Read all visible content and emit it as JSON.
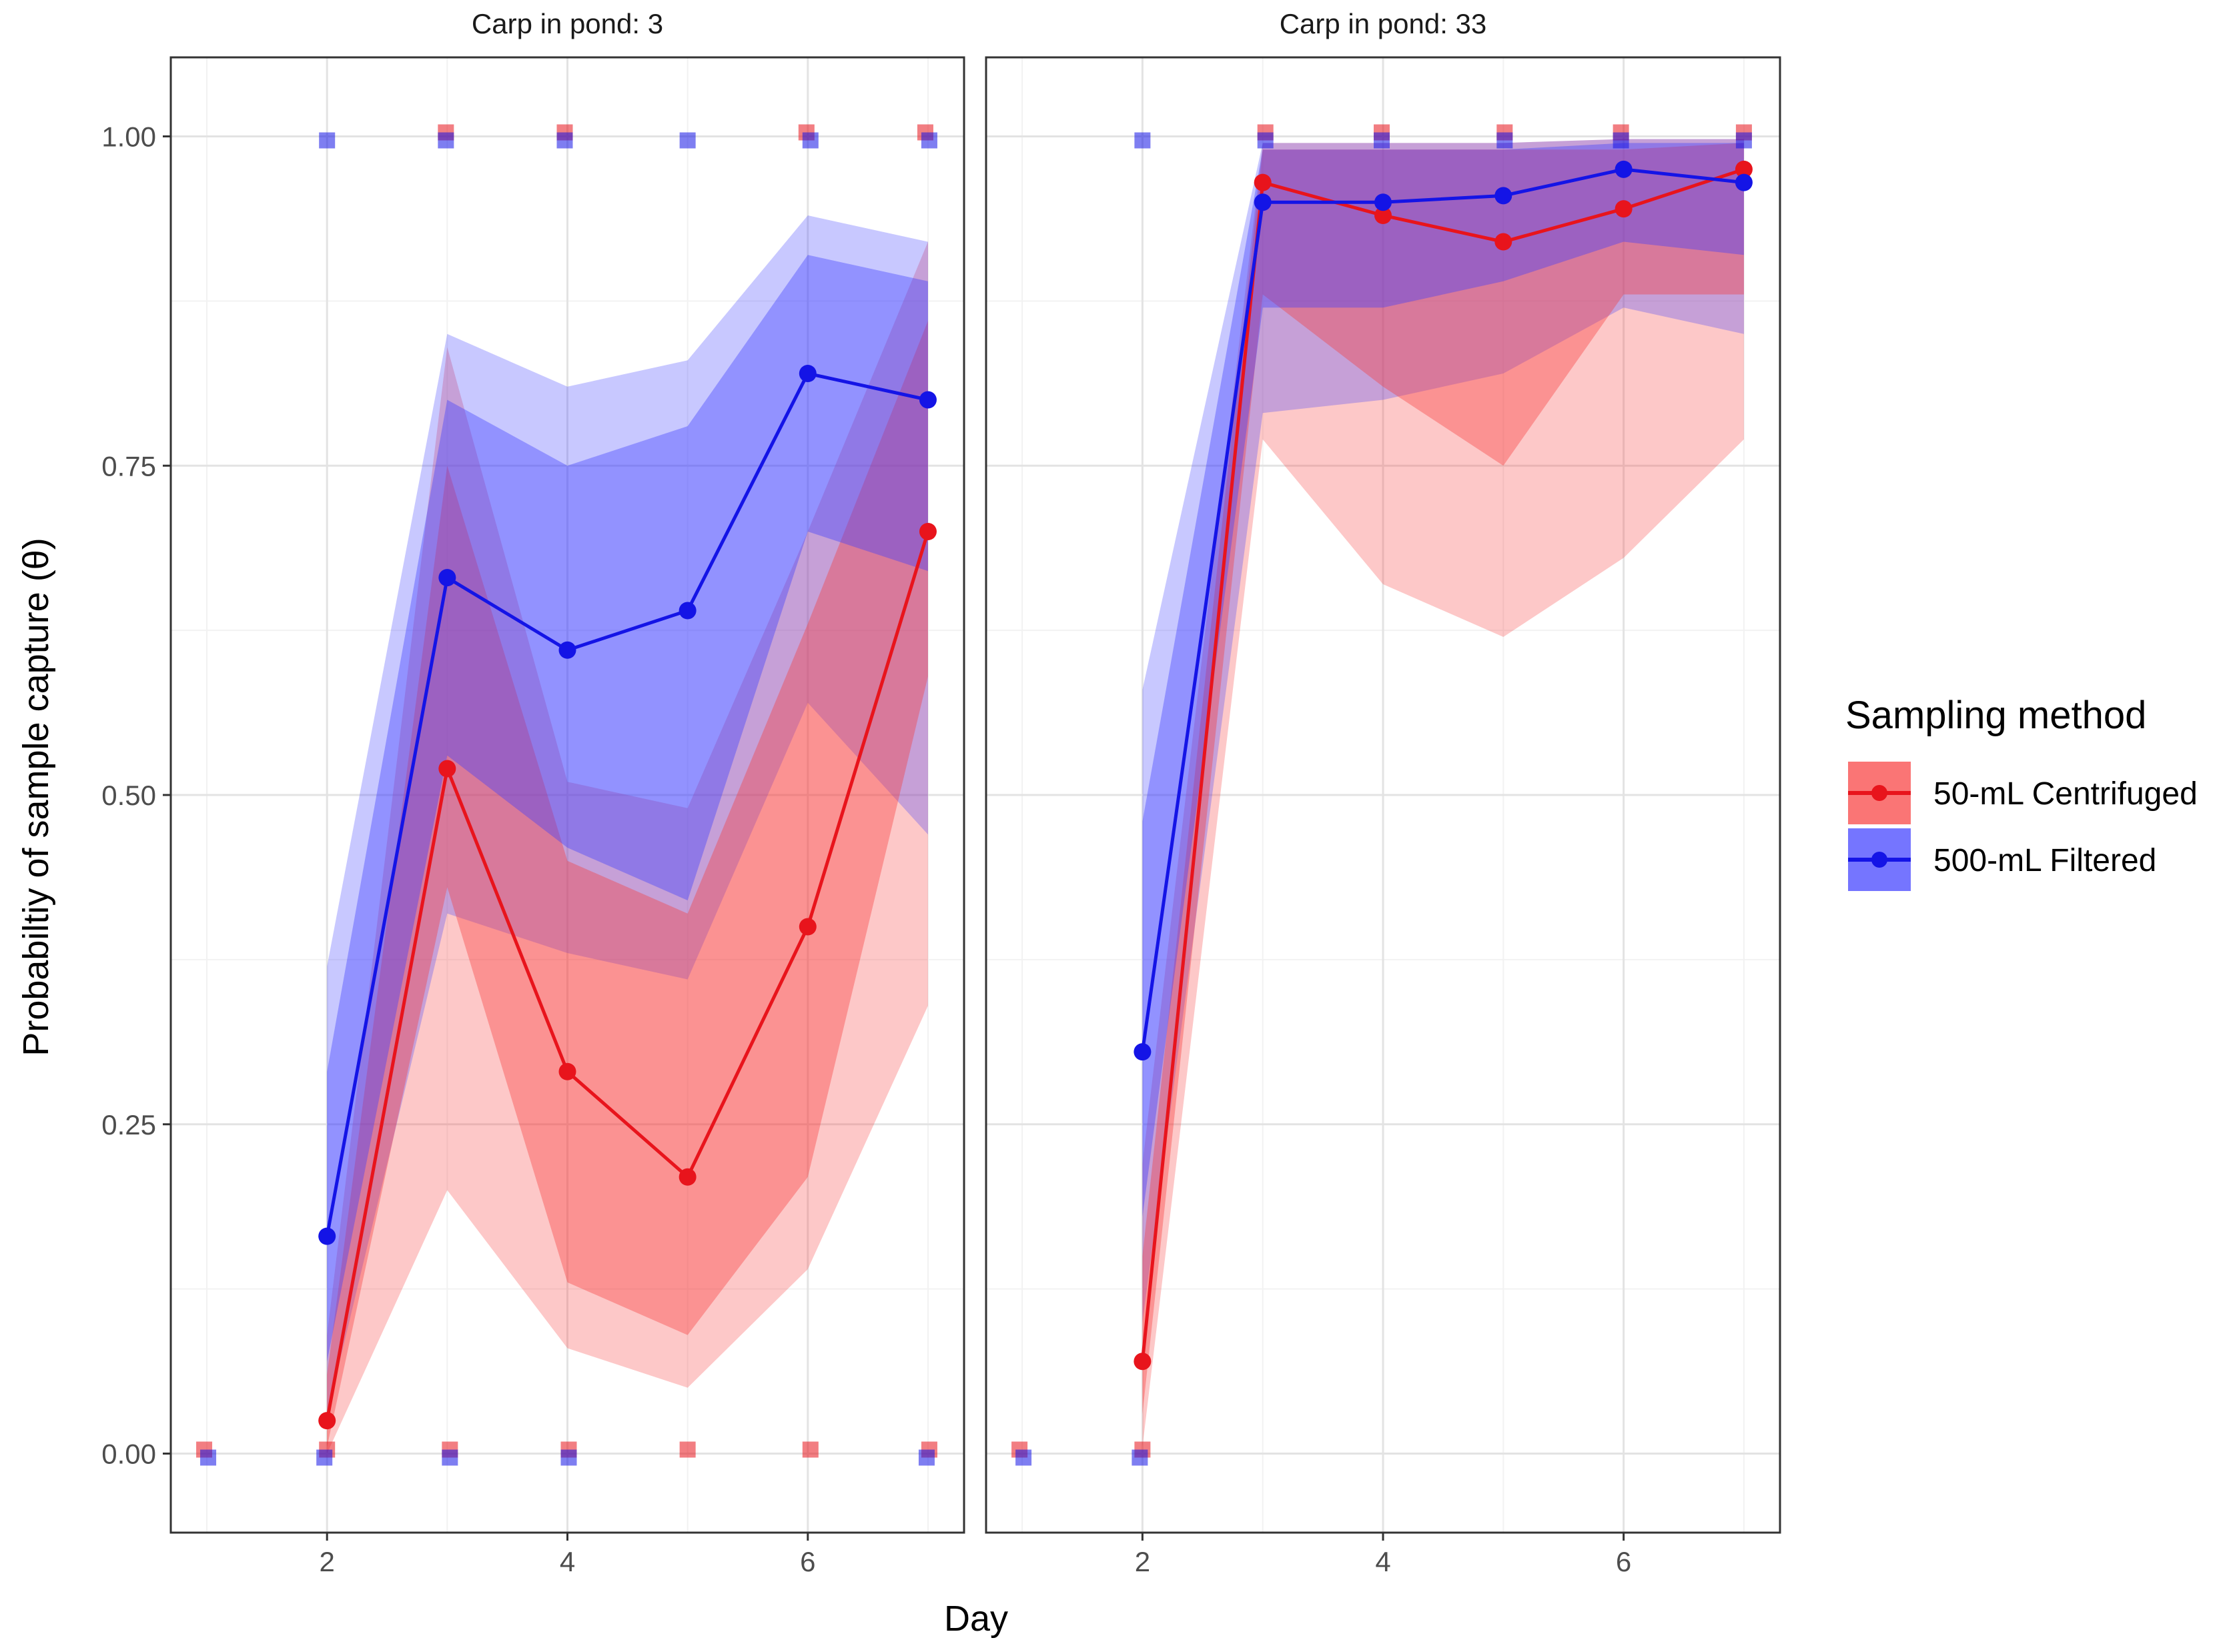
{
  "chart_data": {
    "type": "line",
    "title": "",
    "xlabel": "Day",
    "ylabel": "Probabiltiy of sample capture (θ)",
    "xlim": [
      0.7,
      7.3
    ],
    "ylim": [
      -0.06,
      1.06
    ],
    "x_ticks": [
      2,
      4,
      6
    ],
    "y_ticks": [
      0.0,
      0.25,
      0.5,
      0.75,
      1.0
    ],
    "y_tick_labels": [
      "0.00",
      "0.25",
      "0.50",
      "0.75",
      "1.00"
    ],
    "grid": true,
    "legend": {
      "title": "Sampling method",
      "position": "right",
      "entries": [
        {
          "label": "50-mL Centrifuged",
          "color": "#e8141c"
        },
        {
          "label": "500-mL Filtered",
          "color": "#1414e6"
        }
      ]
    },
    "series_colors": {
      "red": "#e8141c",
      "blue": "#1414e6",
      "red_band": "#f83a3a",
      "blue_band": "#3a3aff"
    },
    "panels": [
      {
        "strip": "Carp in pond: 3",
        "series": [
          {
            "name": "50-mL Centrifuged",
            "color": "red",
            "x": [
              2,
              3,
              4,
              5,
              6,
              7
            ],
            "y": [
              0.025,
              0.52,
              0.29,
              0.21,
              0.4,
              0.7
            ],
            "inner_lower": [
              0.005,
              0.43,
              0.13,
              0.09,
              0.21,
              0.59
            ],
            "inner_upper": [
              0.06,
              0.75,
              0.45,
              0.41,
              0.63,
              0.86
            ],
            "outer_lower": [
              0.0,
              0.2,
              0.08,
              0.05,
              0.14,
              0.34
            ],
            "outer_upper": [
              0.09,
              0.84,
              0.51,
              0.49,
              0.7,
              0.92
            ],
            "observations": [
              {
                "x": 1,
                "y": 0
              },
              {
                "x": 2,
                "y": 0
              },
              {
                "x": 3,
                "y": 0
              },
              {
                "x": 3,
                "y": 1
              },
              {
                "x": 4,
                "y": 0
              },
              {
                "x": 4,
                "y": 1
              },
              {
                "x": 5,
                "y": 0
              },
              {
                "x": 6,
                "y": 0
              },
              {
                "x": 6,
                "y": 1
              },
              {
                "x": 7,
                "y": 0
              },
              {
                "x": 7,
                "y": 1
              }
            ]
          },
          {
            "name": "500-mL Filtered",
            "color": "blue",
            "x": [
              2,
              3,
              4,
              5,
              6,
              7
            ],
            "y": [
              0.165,
              0.665,
              0.61,
              0.64,
              0.82,
              0.8
            ],
            "inner_lower": [
              0.07,
              0.53,
              0.46,
              0.42,
              0.7,
              0.67
            ],
            "inner_upper": [
              0.29,
              0.8,
              0.75,
              0.78,
              0.91,
              0.89
            ],
            "outer_lower": [
              0.03,
              0.41,
              0.38,
              0.36,
              0.57,
              0.47
            ],
            "outer_upper": [
              0.37,
              0.85,
              0.81,
              0.83,
              0.94,
              0.92
            ],
            "observations": [
              {
                "x": 1,
                "y": 0
              },
              {
                "x": 2,
                "y": 0
              },
              {
                "x": 2,
                "y": 1
              },
              {
                "x": 3,
                "y": 0
              },
              {
                "x": 3,
                "y": 1
              },
              {
                "x": 4,
                "y": 0
              },
              {
                "x": 4,
                "y": 1
              },
              {
                "x": 5,
                "y": 1
              },
              {
                "x": 6,
                "y": 1
              },
              {
                "x": 7,
                "y": 0
              },
              {
                "x": 7,
                "y": 1
              }
            ]
          }
        ]
      },
      {
        "strip": "Carp in pond: 33",
        "series": [
          {
            "name": "50-mL Centrifuged",
            "color": "red",
            "x": [
              2,
              3,
              4,
              5,
              6,
              7
            ],
            "y": [
              0.07,
              0.965,
              0.94,
              0.92,
              0.945,
              0.975
            ],
            "inner_lower": [
              0.03,
              0.88,
              0.81,
              0.75,
              0.88,
              0.88
            ],
            "inner_upper": [
              0.15,
              0.99,
              0.99,
              0.99,
              0.99,
              0.995
            ],
            "outer_lower": [
              0.005,
              0.77,
              0.66,
              0.62,
              0.68,
              0.77
            ],
            "outer_upper": [
              0.22,
              0.995,
              0.995,
              0.995,
              0.998,
              0.998
            ],
            "observations": [
              {
                "x": 1,
                "y": 0
              },
              {
                "x": 2,
                "y": 0
              },
              {
                "x": 3,
                "y": 1
              },
              {
                "x": 4,
                "y": 1
              },
              {
                "x": 5,
                "y": 1
              },
              {
                "x": 6,
                "y": 1
              },
              {
                "x": 7,
                "y": 1
              }
            ]
          },
          {
            "name": "500-mL Filtered",
            "color": "blue",
            "x": [
              2,
              3,
              4,
              5,
              6,
              7
            ],
            "y": [
              0.305,
              0.95,
              0.95,
              0.955,
              0.975,
              0.965
            ],
            "inner_lower": [
              0.18,
              0.87,
              0.87,
              0.89,
              0.92,
              0.91
            ],
            "inner_upper": [
              0.48,
              0.99,
              0.99,
              0.99,
              0.995,
              0.995
            ],
            "outer_lower": [
              0.1,
              0.79,
              0.8,
              0.82,
              0.87,
              0.85
            ],
            "outer_upper": [
              0.58,
              0.995,
              0.995,
              0.995,
              0.998,
              0.998
            ],
            "observations": [
              {
                "x": 1,
                "y": 0
              },
              {
                "x": 2,
                "y": 0
              },
              {
                "x": 2,
                "y": 1
              },
              {
                "x": 3,
                "y": 1
              },
              {
                "x": 4,
                "y": 1
              },
              {
                "x": 5,
                "y": 1
              },
              {
                "x": 6,
                "y": 1
              },
              {
                "x": 7,
                "y": 1
              }
            ]
          }
        ]
      }
    ]
  }
}
